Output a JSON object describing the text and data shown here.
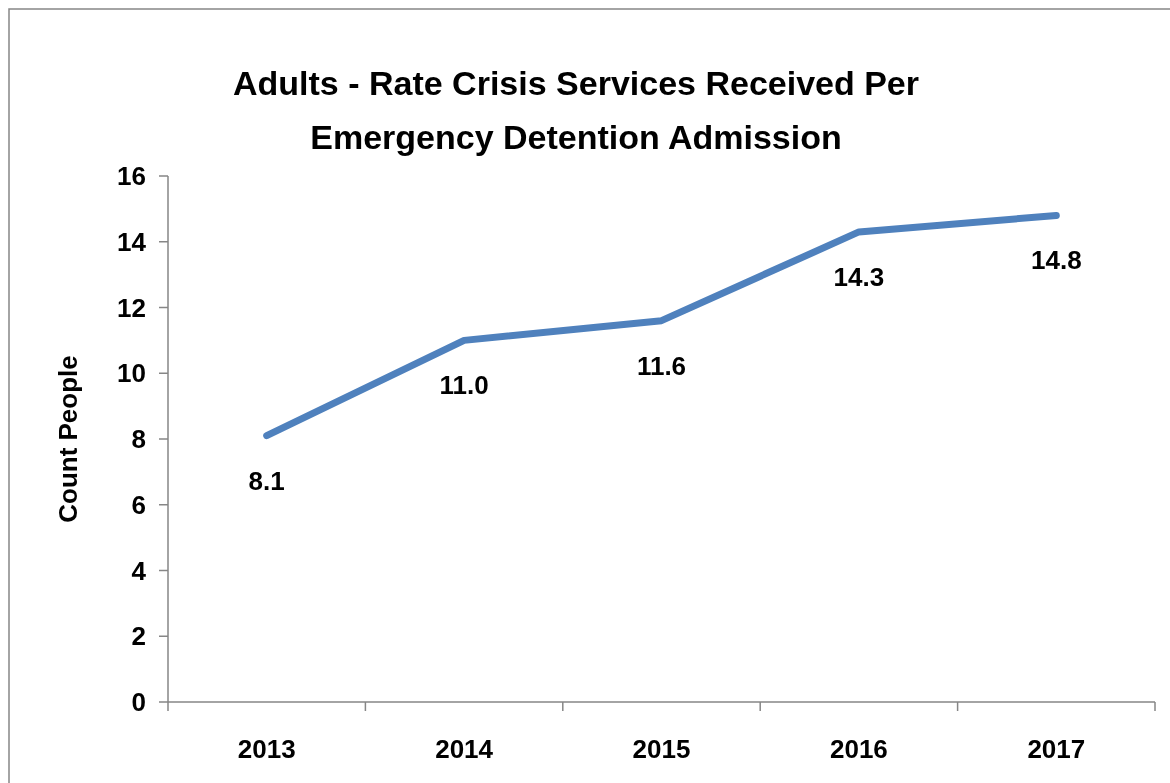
{
  "chart_data": {
    "type": "line",
    "title": "Adults - Rate Crisis Services Received Per Emergency Detention Admission",
    "ylabel": "Count People",
    "categories": [
      "2013",
      "2014",
      "2015",
      "2016",
      "2017"
    ],
    "series": [
      {
        "color": "#4f81bd",
        "values": [
          8.1,
          11.0,
          11.6,
          14.3,
          14.8
        ],
        "value_labels": [
          "8.1",
          "11.0",
          "11.6",
          "14.3",
          "14.8"
        ]
      }
    ],
    "ylim": [
      0,
      16
    ],
    "yticks": [
      0,
      2,
      4,
      6,
      8,
      10,
      12,
      14,
      16
    ],
    "grid": false,
    "marker": "none",
    "line_style": "solid"
  }
}
